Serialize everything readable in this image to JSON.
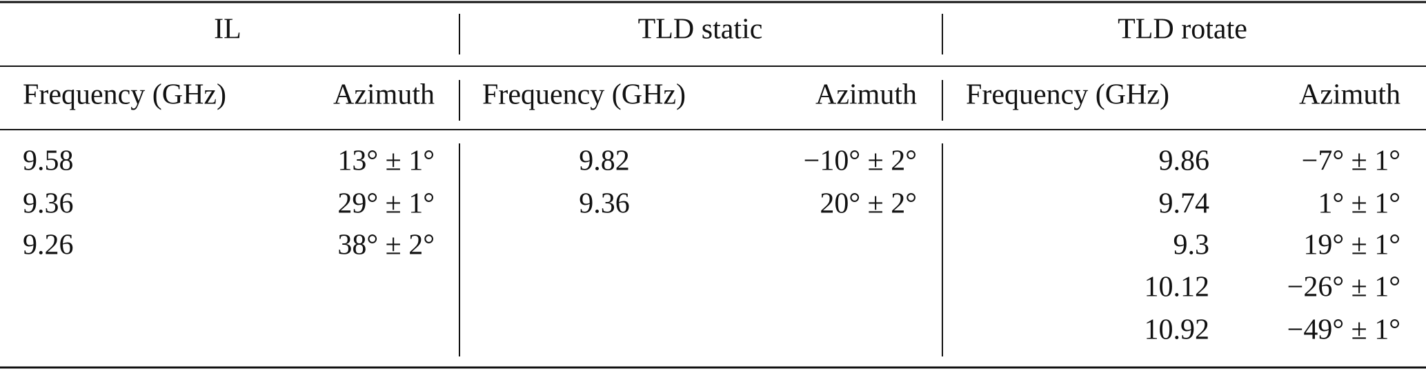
{
  "table": {
    "groups": [
      {
        "title": "IL",
        "columns": [
          "Frequency (GHz)",
          "Azimuth"
        ],
        "rows": [
          [
            "9.58",
            "13° ± 1°"
          ],
          [
            "9.36",
            "29° ± 1°"
          ],
          [
            "9.26",
            "38° ± 2°"
          ]
        ]
      },
      {
        "title": "TLD static",
        "columns": [
          "Frequency (GHz)",
          "Azimuth"
        ],
        "rows": [
          [
            "9.82",
            "−10° ± 2°"
          ],
          [
            "9.36",
            "20° ± 2°"
          ]
        ]
      },
      {
        "title": "TLD rotate",
        "columns": [
          "Frequency (GHz)",
          "Azimuth"
        ],
        "rows": [
          [
            "9.86",
            "−7° ± 1°"
          ],
          [
            "9.74",
            "1° ± 1°"
          ],
          [
            "9.3",
            "19° ± 1°"
          ],
          [
            "10.12",
            "−26° ± 1°"
          ],
          [
            "10.92",
            "−49° ± 1°"
          ]
        ]
      }
    ]
  }
}
